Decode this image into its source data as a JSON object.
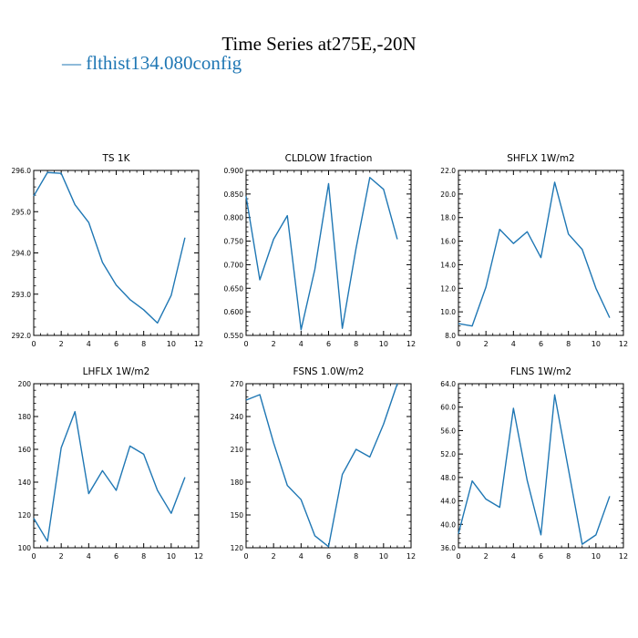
{
  "title": "Time Series at275E,-20N",
  "legend": {
    "label": "flthist134.080config",
    "marker": "—",
    "color": "#1f77b4"
  },
  "chart_data": [
    {
      "type": "line",
      "title": "TS   1K",
      "x": [
        0,
        1,
        2,
        3,
        4,
        5,
        6,
        7,
        8,
        9,
        10,
        11
      ],
      "series": [
        {
          "values": [
            295.38,
            295.95,
            295.93,
            295.17,
            294.74,
            293.77,
            293.22,
            292.87,
            292.62,
            292.3,
            292.97,
            294.37
          ]
        }
      ],
      "xlim": [
        0,
        12
      ],
      "xticks": [
        0,
        2,
        4,
        6,
        8,
        10,
        12
      ],
      "ylim": [
        292.0,
        296.0
      ],
      "yticks": [
        292.0,
        293.0,
        294.0,
        295.0,
        296.0
      ],
      "ytick_labels": [
        "292.0",
        "293.0",
        "294.0",
        "295.0",
        "296.0"
      ]
    },
    {
      "type": "line",
      "title": "CLDLOW   1fraction",
      "x": [
        0,
        1,
        2,
        3,
        4,
        5,
        6,
        7,
        8,
        9,
        10,
        11
      ],
      "series": [
        {
          "values": [
            0.845,
            0.668,
            0.754,
            0.804,
            0.562,
            0.69,
            0.872,
            0.565,
            0.735,
            0.885,
            0.86,
            0.754
          ]
        }
      ],
      "xlim": [
        0,
        12
      ],
      "xticks": [
        0,
        2,
        4,
        6,
        8,
        10,
        12
      ],
      "ylim": [
        0.55,
        0.9
      ],
      "yticks": [
        0.55,
        0.6,
        0.65,
        0.7,
        0.75,
        0.8,
        0.85,
        0.9
      ],
      "ytick_labels": [
        "0.550",
        "0.600",
        "0.650",
        "0.700",
        "0.750",
        "0.800",
        "0.850",
        "0.900"
      ]
    },
    {
      "type": "line",
      "title": "SHFLX   1W/m2",
      "x": [
        0,
        1,
        2,
        3,
        4,
        5,
        6,
        7,
        8,
        9,
        10,
        11
      ],
      "series": [
        {
          "values": [
            9.0,
            8.8,
            12.1,
            17.0,
            15.8,
            16.8,
            14.6,
            21.0,
            16.6,
            15.3,
            12.0,
            9.5
          ]
        }
      ],
      "xlim": [
        0,
        12
      ],
      "xticks": [
        0,
        2,
        4,
        6,
        8,
        10,
        12
      ],
      "ylim": [
        8.0,
        22.0
      ],
      "yticks": [
        8,
        10,
        12,
        14,
        16,
        18,
        20,
        22
      ],
      "ytick_labels": [
        "8.0",
        "10.0",
        "12.0",
        "14.0",
        "16.0",
        "18.0",
        "20.0",
        "22.0"
      ]
    },
    {
      "type": "line",
      "title": "LHFLX   1W/m2",
      "x": [
        0,
        1,
        2,
        3,
        4,
        5,
        6,
        7,
        8,
        9,
        10,
        11
      ],
      "series": [
        {
          "values": [
            118,
            104,
            161,
            183,
            133,
            147,
            135,
            162,
            157,
            135,
            121,
            143
          ]
        }
      ],
      "xlim": [
        0,
        12
      ],
      "xticks": [
        0,
        2,
        4,
        6,
        8,
        10,
        12
      ],
      "ylim": [
        100,
        200
      ],
      "yticks": [
        100,
        120,
        140,
        160,
        180,
        200
      ],
      "ytick_labels": [
        "100",
        "120",
        "140",
        "160",
        "180",
        "200"
      ]
    },
    {
      "type": "line",
      "title": "FSNS   1.0W/m2",
      "x": [
        0,
        1,
        2,
        3,
        4,
        5,
        6,
        7,
        8,
        9,
        10,
        11
      ],
      "series": [
        {
          "values": [
            255,
            260,
            216,
            177,
            164,
            131,
            121,
            187,
            210,
            203,
            233,
            270
          ]
        }
      ],
      "xlim": [
        0,
        12
      ],
      "xticks": [
        0,
        2,
        4,
        6,
        8,
        10,
        12
      ],
      "ylim": [
        120,
        270
      ],
      "yticks": [
        120,
        150,
        180,
        210,
        240,
        270
      ],
      "ytick_labels": [
        "120",
        "150",
        "180",
        "210",
        "240",
        "270"
      ]
    },
    {
      "type": "line",
      "title": "FLNS   1W/m2",
      "x": [
        0,
        1,
        2,
        3,
        4,
        5,
        6,
        7,
        8,
        9,
        10,
        11
      ],
      "series": [
        {
          "values": [
            38.4,
            47.4,
            44.3,
            42.9,
            59.8,
            47.5,
            38.2,
            62.1,
            49.4,
            36.6,
            38.2,
            44.8
          ]
        }
      ],
      "xlim": [
        0,
        12
      ],
      "xticks": [
        0,
        2,
        4,
        6,
        8,
        10,
        12
      ],
      "ylim": [
        36.0,
        64.0
      ],
      "yticks": [
        36,
        40,
        44,
        48,
        52,
        56,
        60,
        64
      ],
      "ytick_labels": [
        "36.0",
        "40.0",
        "44.0",
        "48.0",
        "52.0",
        "56.0",
        "60.0",
        "64.0"
      ]
    }
  ]
}
